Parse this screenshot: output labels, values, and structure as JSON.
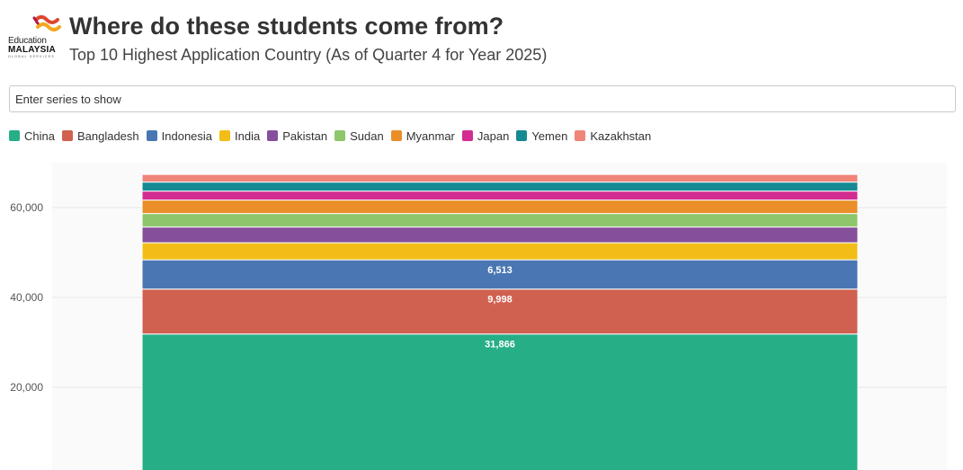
{
  "header": {
    "title": "Where do these students come from?",
    "subtitle": "Top 10 Highest Application Country (As of Quarter 4 for Year 2025)",
    "logo": {
      "line1": "Education",
      "line2": "MALAYSIA",
      "line3": "GLOBAL SERVICES"
    }
  },
  "controls": {
    "series_filter_placeholder": "Enter series to show"
  },
  "colors": {
    "China": "#26ae87",
    "Bangladesh": "#d06150",
    "Indonesia": "#4a76b3",
    "India": "#f2bd16",
    "Pakistan": "#864f9b",
    "Sudan": "#8ec66c",
    "Myanmar": "#ea8e2a",
    "Japan": "#d32c91",
    "Yemen": "#158a92",
    "Kazakhstan": "#f08479"
  },
  "chart_data": {
    "type": "bar",
    "stacked": true,
    "title": "Where do these students come from?",
    "subtitle": "Top 10 Highest Application Country (As of Quarter 4 for Year 2025)",
    "categories": [
      ""
    ],
    "ylim": [
      0,
      70000
    ],
    "yticks": [
      20000,
      40000,
      60000
    ],
    "ytick_labels": [
      "20,000",
      "40,000",
      "60,000"
    ],
    "grid": true,
    "legend_position": "top-left",
    "series": [
      {
        "name": "China",
        "values": [
          31866
        ],
        "label": "31,866"
      },
      {
        "name": "Bangladesh",
        "values": [
          9998
        ],
        "label": "9,998"
      },
      {
        "name": "Indonesia",
        "values": [
          6513
        ],
        "label": "6,513"
      },
      {
        "name": "India",
        "values": [
          3800
        ]
      },
      {
        "name": "Pakistan",
        "values": [
          3500
        ]
      },
      {
        "name": "Sudan",
        "values": [
          3000
        ]
      },
      {
        "name": "Myanmar",
        "values": [
          3000
        ]
      },
      {
        "name": "Japan",
        "values": [
          2000
        ]
      },
      {
        "name": "Yemen",
        "values": [
          2000
        ]
      },
      {
        "name": "Kazakhstan",
        "values": [
          1700
        ]
      }
    ]
  }
}
